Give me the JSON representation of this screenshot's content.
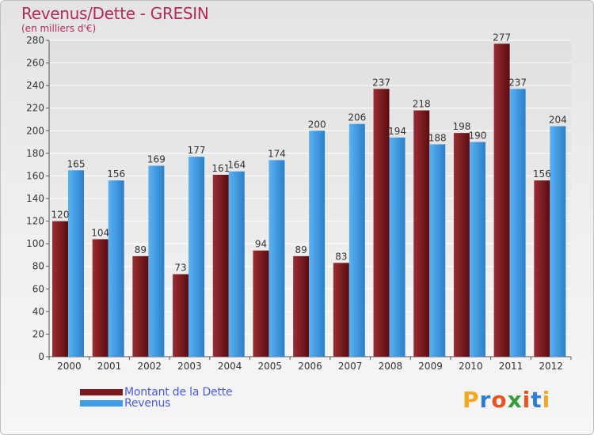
{
  "header": {
    "title": "Revenus/Dette - GRESIN",
    "subtitle": "(en milliers d'€)"
  },
  "chart_data": {
    "type": "bar",
    "title": "Revenus/Dette - GRESIN",
    "subtitle": "(en milliers d'€)",
    "xlabel": "",
    "ylabel": "",
    "ylim": [
      0,
      280
    ],
    "yticks": [
      0,
      20,
      40,
      60,
      80,
      100,
      120,
      140,
      160,
      180,
      200,
      220,
      240,
      260,
      280
    ],
    "grid": true,
    "legend_position": "bottom-left",
    "categories": [
      "2000",
      "2001",
      "2002",
      "2003",
      "2004",
      "2005",
      "2006",
      "2007",
      "2008",
      "2009",
      "2010",
      "2011",
      "2012"
    ],
    "series": [
      {
        "name": "Montant de la Dette",
        "color": "#7a1a1e",
        "values": [
          120,
          104,
          89,
          73,
          161,
          94,
          89,
          83,
          237,
          218,
          198,
          277,
          156
        ]
      },
      {
        "name": "Revenus",
        "color": "#3d9ce6",
        "values": [
          165,
          156,
          169,
          177,
          164,
          174,
          200,
          206,
          194,
          188,
          190,
          237,
          204
        ]
      }
    ]
  },
  "legend": {
    "items": [
      {
        "label": "Montant de la Dette",
        "color": "#7a1a1e"
      },
      {
        "label": "Revenus",
        "color": "#3d9ce6"
      }
    ]
  },
  "logo": {
    "text": "Proxiti",
    "letter_colors": [
      "#f5a623",
      "#2f7fd1",
      "#e8541e",
      "#3a9b3a",
      "#e8541e",
      "#2f7fd1",
      "#f5a623"
    ]
  }
}
